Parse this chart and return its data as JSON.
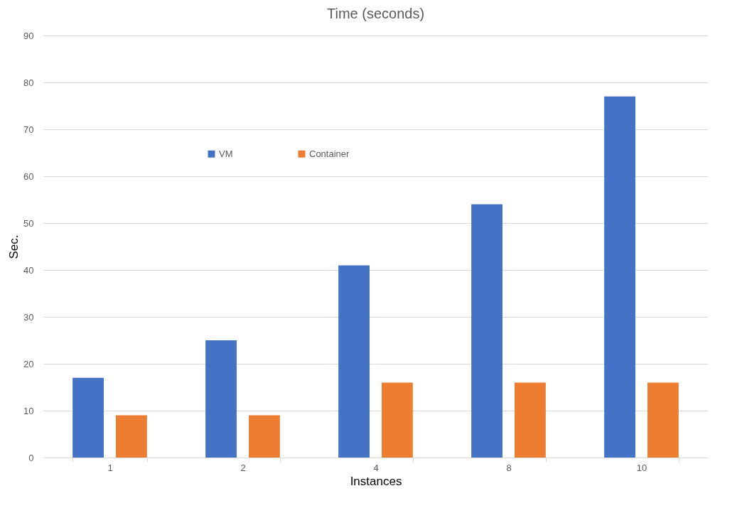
{
  "chart_data": {
    "type": "bar",
    "title": "Time (seconds)",
    "xlabel": "Instances",
    "ylabel": "Sec.",
    "categories": [
      "1",
      "2",
      "4",
      "8",
      "10"
    ],
    "series": [
      {
        "name": "VM",
        "color": "#4472c4",
        "values": [
          17,
          25,
          41,
          54,
          77
        ]
      },
      {
        "name": "Container",
        "color": "#ed7d31",
        "values": [
          9,
          9,
          16,
          16,
          16
        ]
      }
    ],
    "ylim": [
      0,
      90
    ],
    "yticks": [
      0,
      10,
      20,
      30,
      40,
      50,
      60,
      70,
      80,
      90
    ],
    "grid": "y",
    "legend": "top left"
  }
}
